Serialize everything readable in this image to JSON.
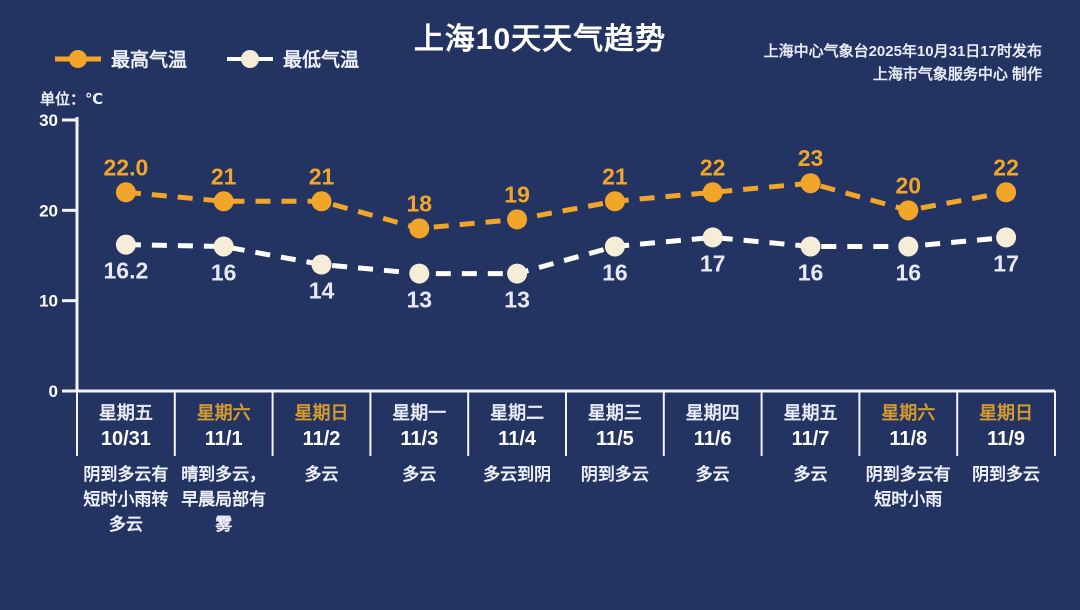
{
  "header": {
    "title": "上海10天天气趋势",
    "publisher_line1": "上海中心气象台2025年10月31日17时发布",
    "publisher_line2": "上海市气象服务中心  制作"
  },
  "legend": {
    "high_label": "最高气温",
    "low_label": "最低气温"
  },
  "unit_label": "单位：℃",
  "colors": {
    "background": "#243462",
    "high": "#F2A629",
    "low_line": "#FFFFFF",
    "low_marker": "#F6EDD8",
    "low_label": "#E6E8F4",
    "axis": "#F2F4FA",
    "weekend_text": "#D39A2E",
    "text": "#FFFFFF"
  },
  "chart_data": {
    "type": "line",
    "title": "上海10天天气趋势",
    "ylabel": "单位：℃",
    "ylim": [
      0,
      30
    ],
    "yticks": [
      0,
      10,
      20,
      30
    ],
    "grid": false,
    "legend_position": "top-left",
    "categories": [
      "10/31",
      "11/1",
      "11/2",
      "11/3",
      "11/4",
      "11/5",
      "11/6",
      "11/7",
      "11/8",
      "11/9"
    ],
    "series": [
      {
        "id": "high",
        "name": "最高气温",
        "values": [
          22.0,
          21,
          21,
          18,
          19,
          21,
          22,
          23,
          20,
          22
        ],
        "labels": [
          "22.0",
          "21",
          "21",
          "18",
          "19",
          "21",
          "22",
          "23",
          "20",
          "22"
        ],
        "color": "#F2A629",
        "marker_color": "#F2A629",
        "label_color": "#F2A629"
      },
      {
        "id": "low",
        "name": "最低气温",
        "values": [
          16.2,
          16,
          14,
          13,
          13,
          16,
          17,
          16,
          16,
          17
        ],
        "labels": [
          "16.2",
          "16",
          "14",
          "13",
          "13",
          "16",
          "17",
          "16",
          "16",
          "17"
        ],
        "color": "#FFFFFF",
        "marker_color": "#F6EDD8",
        "label_color": "#E6E8F4"
      }
    ]
  },
  "days": [
    {
      "weekday": "星期五",
      "date": "10/31",
      "weekend": false,
      "weather": "阴到多云有短时小雨转多云"
    },
    {
      "weekday": "星期六",
      "date": "11/1",
      "weekend": true,
      "weather": "晴到多云，早晨局部有雾"
    },
    {
      "weekday": "星期日",
      "date": "11/2",
      "weekend": true,
      "weather": "多云"
    },
    {
      "weekday": "星期一",
      "date": "11/3",
      "weekend": false,
      "weather": "多云"
    },
    {
      "weekday": "星期二",
      "date": "11/4",
      "weekend": false,
      "weather": "多云到阴"
    },
    {
      "weekday": "星期三",
      "date": "11/5",
      "weekend": false,
      "weather": "阴到多云"
    },
    {
      "weekday": "星期四",
      "date": "11/6",
      "weekend": false,
      "weather": "多云"
    },
    {
      "weekday": "星期五",
      "date": "11/7",
      "weekend": false,
      "weather": "多云"
    },
    {
      "weekday": "星期六",
      "date": "11/8",
      "weekend": true,
      "weather": "阴到多云有短时小雨"
    },
    {
      "weekday": "星期日",
      "date": "11/9",
      "weekend": true,
      "weather": "阴到多云"
    }
  ]
}
